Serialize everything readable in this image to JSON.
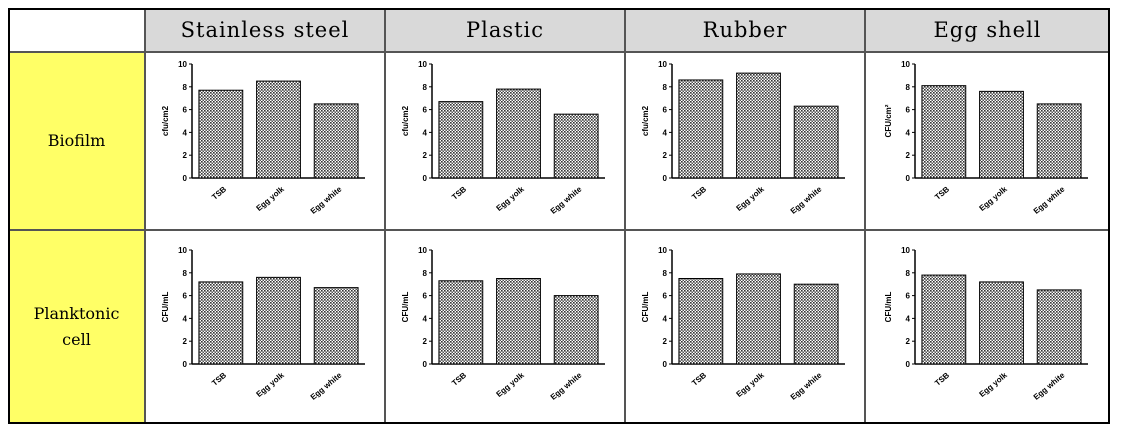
{
  "table": {
    "header": [
      "Stainless steel",
      "Plastic",
      "Rubber",
      "Egg shell"
    ],
    "rows": [
      "Biofilm",
      "Planktonic cell"
    ]
  },
  "chart_data": [
    {
      "type": "bar",
      "ylabel": "cfu/cm2",
      "categories": [
        "TSB",
        "Egg yolk",
        "Egg white"
      ],
      "values": [
        7.7,
        8.5,
        6.5
      ],
      "ylim": [
        0,
        10
      ],
      "yticks": [
        0,
        2,
        4,
        6,
        8,
        10
      ]
    },
    {
      "type": "bar",
      "ylabel": "cfu/cm2",
      "categories": [
        "TSB",
        "Egg yolk",
        "Egg white"
      ],
      "values": [
        6.7,
        7.8,
        5.6
      ],
      "ylim": [
        0,
        10
      ],
      "yticks": [
        0,
        2,
        4,
        6,
        8,
        10
      ]
    },
    {
      "type": "bar",
      "ylabel": "cfu/cm2",
      "categories": [
        "TSB",
        "Egg yolk",
        "Egg white"
      ],
      "values": [
        8.6,
        9.2,
        6.3
      ],
      "ylim": [
        0,
        10
      ],
      "yticks": [
        0,
        2,
        4,
        6,
        8,
        10
      ]
    },
    {
      "type": "bar",
      "ylabel": "CFU/cm²",
      "categories": [
        "TSB",
        "Egg yolk",
        "Egg white"
      ],
      "values": [
        8.1,
        7.6,
        6.5
      ],
      "ylim": [
        0,
        10
      ],
      "yticks": [
        0,
        2,
        4,
        6,
        8,
        10
      ]
    },
    {
      "type": "bar",
      "ylabel": "CFU/mL",
      "categories": [
        "TSB",
        "Egg yolk",
        "Egg white"
      ],
      "values": [
        7.2,
        7.6,
        6.7
      ],
      "ylim": [
        0,
        10
      ],
      "yticks": [
        0,
        2,
        4,
        6,
        8,
        10
      ]
    },
    {
      "type": "bar",
      "ylabel": "CFU/mL",
      "categories": [
        "TSB",
        "Egg yolk",
        "Egg white"
      ],
      "values": [
        7.3,
        7.5,
        6.0
      ],
      "ylim": [
        0,
        10
      ],
      "yticks": [
        0,
        2,
        4,
        6,
        8,
        10
      ]
    },
    {
      "type": "bar",
      "ylabel": "CFU/mL",
      "categories": [
        "TSB",
        "Egg yolk",
        "Egg white"
      ],
      "values": [
        7.5,
        7.9,
        7.0
      ],
      "ylim": [
        0,
        10
      ],
      "yticks": [
        0,
        2,
        4,
        6,
        8,
        10
      ]
    },
    {
      "type": "bar",
      "ylabel": "CFU/mL",
      "categories": [
        "TSB",
        "Egg yolk",
        "Egg white"
      ],
      "values": [
        7.8,
        7.2,
        6.5
      ],
      "ylim": [
        0,
        10
      ],
      "yticks": [
        0,
        2,
        4,
        6,
        8,
        10
      ]
    }
  ]
}
